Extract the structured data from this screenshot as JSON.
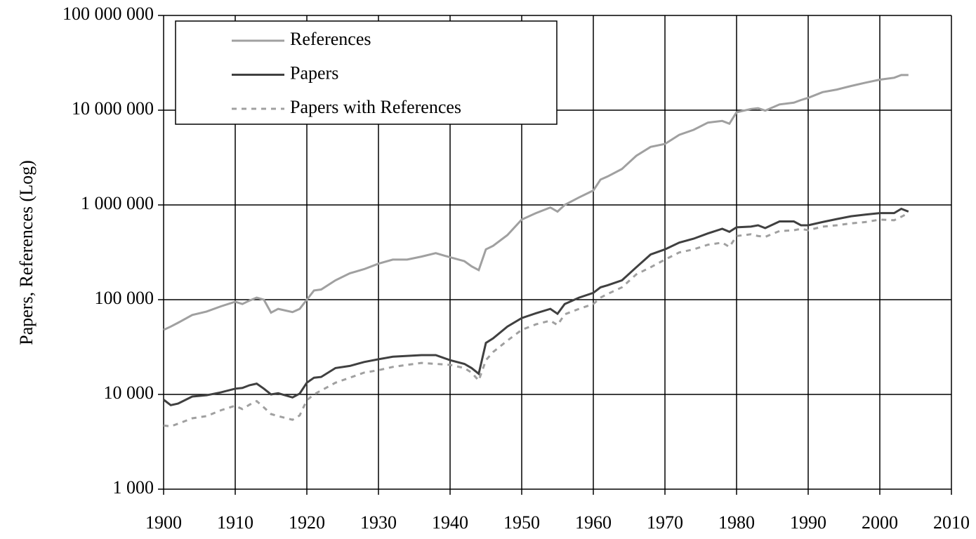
{
  "chart_data": {
    "type": "line",
    "ylabel": "Papers, References (Log)",
    "log_y": true,
    "grid": true,
    "legend": "upper left",
    "x": [
      1900,
      1901,
      1902,
      1904,
      1906,
      1908,
      1910,
      1911,
      1912,
      1913,
      1914,
      1915,
      1916,
      1918,
      1919,
      1920,
      1921,
      1922,
      1924,
      1926,
      1928,
      1930,
      1932,
      1934,
      1936,
      1938,
      1940,
      1942,
      1943,
      1944,
      1945,
      1946,
      1948,
      1950,
      1952,
      1954,
      1955,
      1956,
      1958,
      1960,
      1961,
      1962,
      1964,
      1966,
      1968,
      1970,
      1972,
      1974,
      1976,
      1978,
      1979,
      1980,
      1982,
      1983,
      1984,
      1986,
      1988,
      1989,
      1990,
      1992,
      1994,
      1996,
      1998,
      2000,
      2002,
      2003,
      2004
    ],
    "series": [
      {
        "name": "References",
        "color": "#a0a0a0",
        "dashed": false,
        "values": [
          48000,
          52000,
          57000,
          69000,
          75000,
          85000,
          95000,
          90000,
          98000,
          105000,
          100000,
          73000,
          80000,
          74000,
          80000,
          100000,
          125000,
          128000,
          160000,
          190000,
          210000,
          240000,
          265000,
          265000,
          285000,
          310000,
          280000,
          255000,
          225000,
          205000,
          340000,
          370000,
          480000,
          700000,
          820000,
          940000,
          850000,
          1000000,
          1200000,
          1420000,
          1850000,
          2000000,
          2400000,
          3300000,
          4100000,
          4400000,
          5500000,
          6200000,
          7400000,
          7700000,
          7200000,
          9500000,
          10300000,
          10500000,
          9900000,
          11500000,
          12000000,
          12800000,
          13500000,
          15500000,
          16500000,
          18000000,
          19500000,
          21000000,
          22000000,
          23500000,
          23500000
        ]
      },
      {
        "name": "Papers",
        "color": "#404040",
        "dashed": false,
        "values": [
          8800,
          7700,
          8000,
          9500,
          9800,
          10500,
          11500,
          11700,
          12500,
          13000,
          11500,
          10000,
          10300,
          9300,
          10200,
          13300,
          15000,
          15300,
          19000,
          20000,
          22000,
          23500,
          25000,
          25500,
          26000,
          26000,
          23000,
          21000,
          19000,
          16500,
          35000,
          39000,
          52000,
          64000,
          72000,
          80000,
          71000,
          90000,
          105000,
          118000,
          135000,
          142000,
          160000,
          220000,
          300000,
          340000,
          400000,
          440000,
          500000,
          560000,
          520000,
          580000,
          590000,
          610000,
          570000,
          670000,
          670000,
          610000,
          610000,
          660000,
          710000,
          760000,
          790000,
          820000,
          820000,
          910000,
          850000
        ]
      },
      {
        "name": "Papers with References",
        "color": "#a0a0a0",
        "dashed": true,
        "values": [
          4700,
          4600,
          4900,
          5600,
          5900,
          6800,
          7600,
          7000,
          7800,
          8500,
          7300,
          6200,
          5900,
          5400,
          6000,
          8700,
          10000,
          11000,
          13300,
          15000,
          17000,
          18000,
          19500,
          20500,
          21500,
          21000,
          20500,
          19000,
          17000,
          14000,
          23000,
          28000,
          37000,
          48000,
          55000,
          60000,
          54000,
          70000,
          80000,
          90000,
          105000,
          115000,
          135000,
          185000,
          220000,
          265000,
          315000,
          340000,
          380000,
          400000,
          360000,
          470000,
          490000,
          470000,
          460000,
          530000,
          540000,
          560000,
          540000,
          590000,
          610000,
          640000,
          660000,
          700000,
          690000,
          750000,
          820000
        ]
      }
    ],
    "xlim": [
      1900,
      2010
    ],
    "xticks": [
      1900,
      1910,
      1920,
      1930,
      1940,
      1950,
      1960,
      1970,
      1980,
      1990,
      2000,
      2010
    ],
    "ylim": [
      1000,
      100000000
    ],
    "yticks": [
      {
        "value": 1000,
        "label": "1 000"
      },
      {
        "value": 10000,
        "label": "10 000"
      },
      {
        "value": 100000,
        "label": "100 000"
      },
      {
        "value": 1000000,
        "label": "1 000 000"
      },
      {
        "value": 10000000,
        "label": "10 000 000"
      },
      {
        "value": 100000000,
        "label": "100 000 000"
      }
    ]
  }
}
